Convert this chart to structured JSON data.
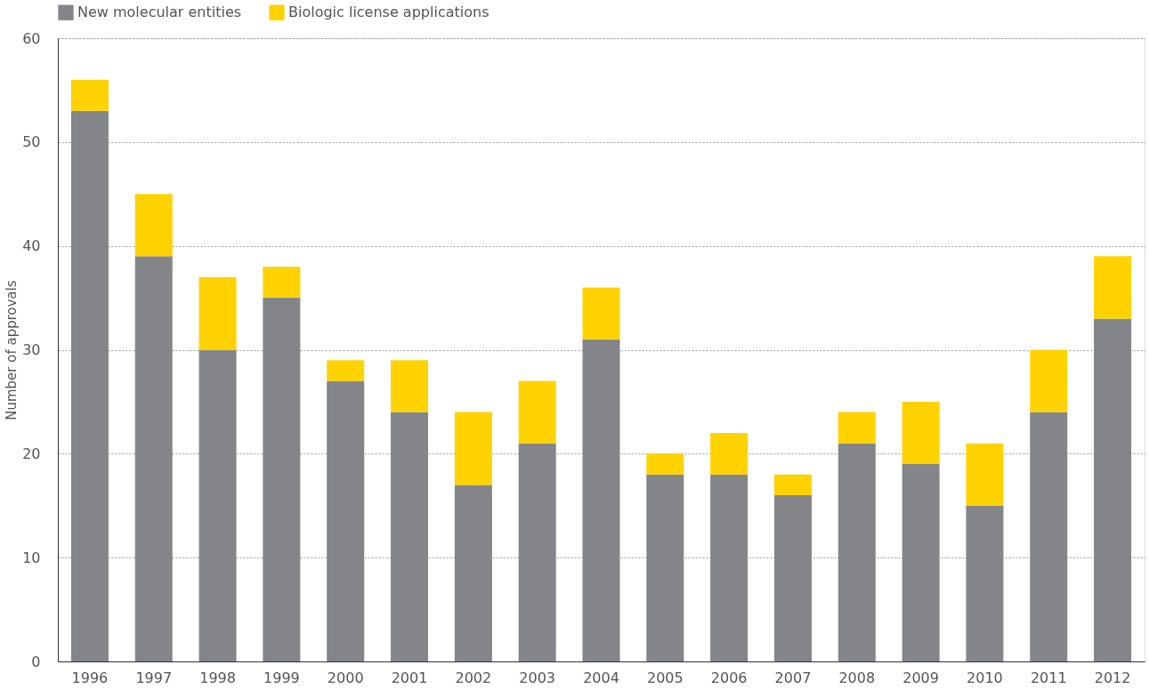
{
  "chart_data": {
    "type": "bar",
    "stacked": true,
    "ylabel": "Number of approvals",
    "categories": [
      "1996",
      "1997",
      "1998",
      "1999",
      "2000",
      "2001",
      "2002",
      "2003",
      "2004",
      "2005",
      "2006",
      "2007",
      "2008",
      "2009",
      "2010",
      "2011",
      "2012"
    ],
    "series": [
      {
        "name": "New molecular entities",
        "color": "#848589",
        "values": [
          53,
          39,
          30,
          35,
          27,
          24,
          17,
          21,
          31,
          18,
          18,
          16,
          21,
          19,
          15,
          24,
          33
        ]
      },
      {
        "name": "Biologic license applications",
        "color": "#ffd200",
        "values": [
          3,
          6,
          7,
          3,
          2,
          5,
          7,
          6,
          5,
          2,
          4,
          2,
          3,
          6,
          6,
          6,
          6
        ]
      }
    ],
    "ylim": [
      0,
      60
    ],
    "yticks": [
      0,
      10,
      20,
      30,
      40,
      50,
      60
    ],
    "grid": "y",
    "legend": "top left"
  }
}
